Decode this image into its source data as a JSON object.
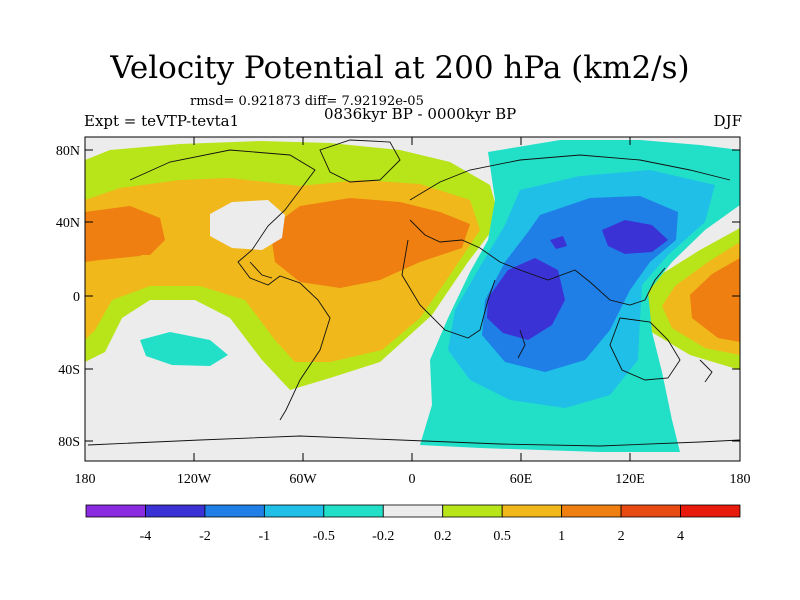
{
  "title": "Velocity Potential at 200 hPa (km2/s)",
  "stats_text": "rmsd= 0.921873 diff= 7.92192e-05",
  "experiment": "Expt = teVTP-tevta1",
  "period": "0836kyr BP - 0000kyr BP",
  "season": "DJF",
  "axes": {
    "lat_ticks": [
      "80N",
      "40N",
      "0",
      "40S",
      "80S"
    ],
    "lon_ticks": [
      "180",
      "120W",
      "60W",
      "0",
      "60E",
      "120E",
      "180"
    ]
  },
  "colorbar": {
    "labels": [
      "-4",
      "-2",
      "-1",
      "-0.5",
      "-0.2",
      "0.2",
      "0.5",
      "1",
      "2",
      "4"
    ],
    "colors": [
      "#8a2be2",
      "#3b32d6",
      "#1f7fe6",
      "#1fbfe8",
      "#22e0c8",
      "#ececec",
      "#b8e41a",
      "#f0b81a",
      "#ee7f10",
      "#e84a12",
      "#e81a0c"
    ]
  },
  "colors": {
    "neg_strong": "#3b32d6",
    "neg_mid": "#1f7fe6",
    "neg_light": "#1fbfe8",
    "neg_weak": "#22e0c8",
    "neutral": "#ececec",
    "pos_weak": "#b8e41a",
    "pos_light": "#f0b81a",
    "pos_mid": "#ee7f10"
  }
}
